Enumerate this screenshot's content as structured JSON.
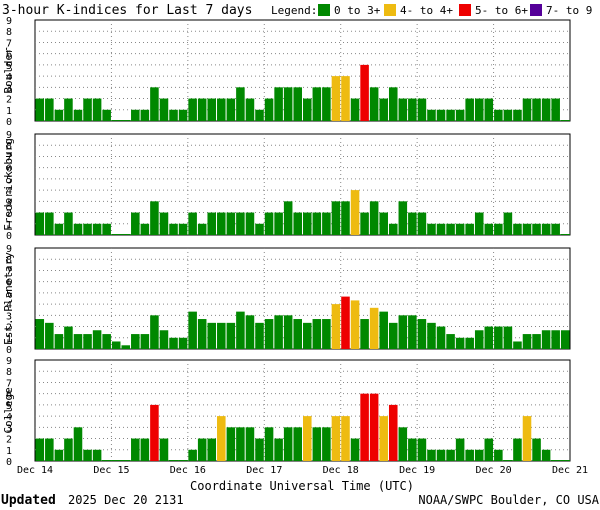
{
  "chart_data": {
    "type": "bar",
    "title": "3-hour K-indices for Last 7 days",
    "legend": {
      "label": "Legend:",
      "items": [
        {
          "label": "0 to 3+",
          "color": "#008800"
        },
        {
          "label": "4- to 4+",
          "color": "#eebb11"
        },
        {
          "label": "5- to 6+",
          "color": "#ee0000"
        },
        {
          "label": "7- to 9",
          "color": "#550099"
        }
      ]
    },
    "xlabel": "Coordinate Universal Time (UTC)",
    "xticks": [
      "Dec 14",
      "Dec 15",
      "Dec 16",
      "Dec 17",
      "Dec 18",
      "Dec 19",
      "Dec 20",
      "Dec 21"
    ],
    "yticks": [
      "0",
      "1",
      "2",
      "3",
      "4",
      "5",
      "6",
      "7",
      "8",
      "9"
    ],
    "ylim": [
      0,
      9
    ],
    "grid": true,
    "panels": [
      {
        "name": "Boulder",
        "values": [
          2,
          2,
          1,
          2,
          1,
          2,
          2,
          1,
          0,
          0,
          1,
          1,
          3,
          2,
          1,
          1,
          2,
          2,
          2,
          2,
          2,
          3,
          2,
          1,
          2,
          3,
          3,
          3,
          2,
          3,
          3,
          4,
          4,
          2,
          5,
          3,
          2,
          3,
          2,
          2,
          2,
          1,
          1,
          1,
          1,
          2,
          2,
          2,
          1,
          1,
          1,
          2,
          2,
          2,
          2,
          0
        ]
      },
      {
        "name": "Fredericksburg",
        "values": [
          2,
          2,
          1,
          2,
          1,
          1,
          1,
          1,
          0,
          0,
          2,
          1,
          3,
          2,
          1,
          1,
          2,
          1,
          2,
          2,
          2,
          2,
          2,
          1,
          2,
          2,
          3,
          2,
          2,
          2,
          2,
          3,
          3,
          4,
          2,
          3,
          2,
          1,
          3,
          2,
          2,
          1,
          1,
          1,
          1,
          1,
          2,
          1,
          1,
          2,
          1,
          1,
          1,
          1,
          1,
          0
        ]
      },
      {
        "name": "Est. Planetary",
        "values": [
          2.67,
          2.33,
          1.33,
          2.0,
          1.33,
          1.33,
          1.67,
          1.33,
          0.67,
          0.33,
          1.33,
          1.33,
          3.0,
          1.67,
          1.0,
          1.0,
          3.33,
          2.67,
          2.33,
          2.33,
          2.33,
          3.33,
          3.0,
          2.33,
          2.67,
          3.0,
          3.0,
          2.67,
          2.33,
          2.67,
          2.67,
          4.0,
          4.67,
          4.33,
          2.67,
          3.67,
          3.33,
          2.33,
          3.0,
          3.0,
          2.67,
          2.33,
          2.0,
          1.33,
          1.0,
          1.0,
          1.67,
          2.0,
          2.0,
          2.0,
          0.67,
          1.33,
          1.33,
          1.67,
          1.67,
          1.67
        ]
      },
      {
        "name": "College",
        "values": [
          2,
          2,
          1,
          2,
          3,
          1,
          1,
          0,
          0,
          0,
          2,
          2,
          5,
          2,
          0,
          0,
          1,
          2,
          2,
          4,
          3,
          3,
          3,
          2,
          3,
          2,
          3,
          3,
          4,
          3,
          3,
          4,
          4,
          2,
          6,
          6,
          4,
          5,
          3,
          2,
          2,
          1,
          1,
          1,
          2,
          1,
          1,
          2,
          1,
          0,
          2,
          4,
          2,
          1,
          0,
          0
        ]
      }
    ]
  },
  "footer": {
    "updated_label": "Updated",
    "updated_value": "2025 Dec 20 2131",
    "credit": "NOAA/SWPC Boulder, CO USA"
  }
}
